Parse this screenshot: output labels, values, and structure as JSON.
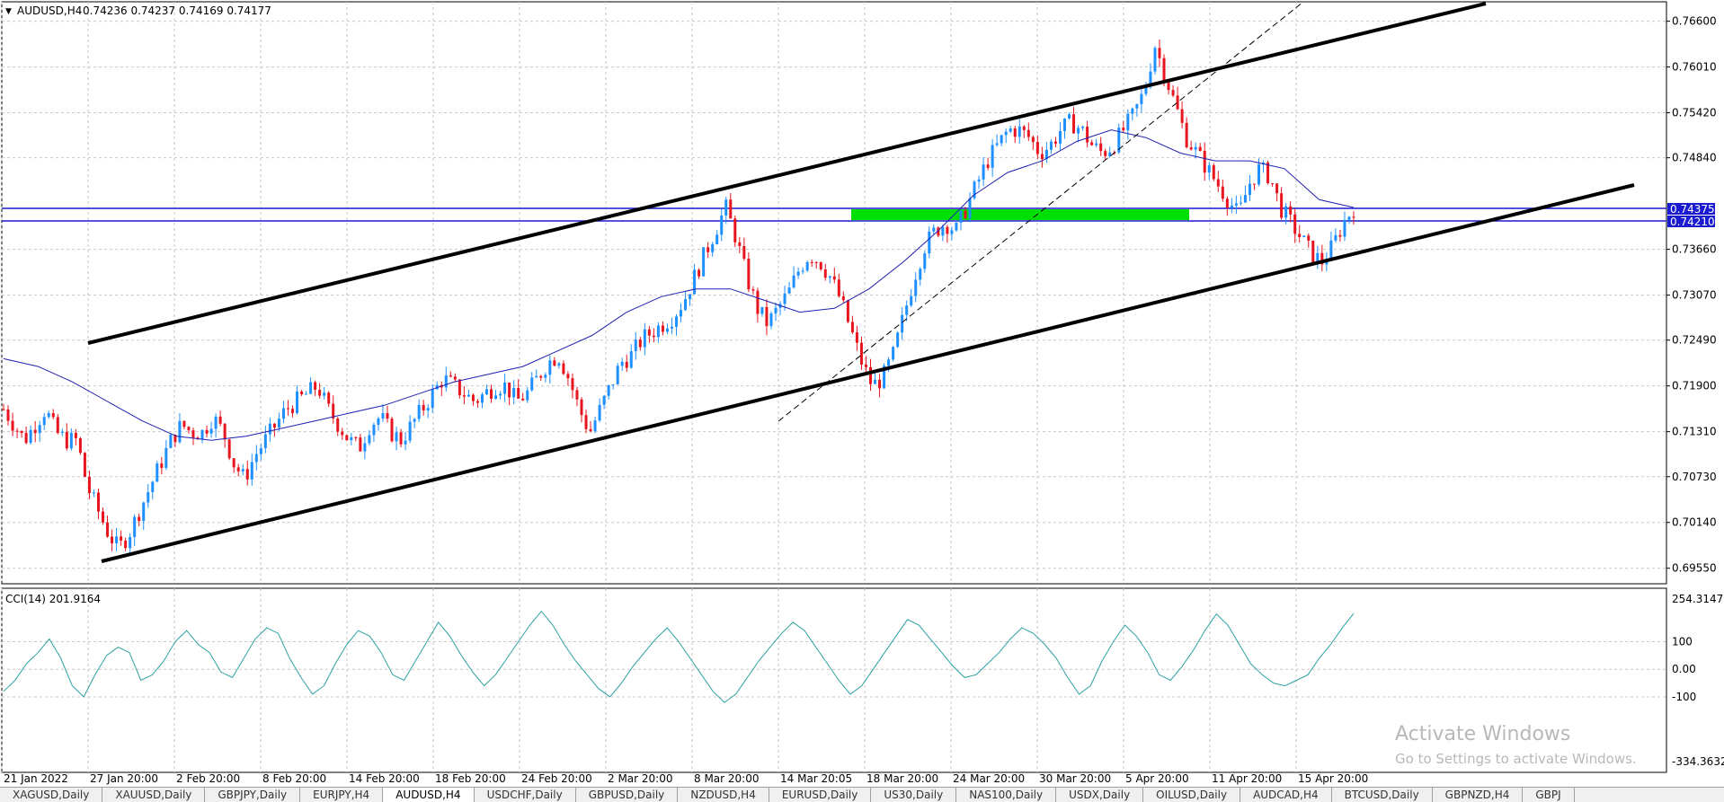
{
  "header": {
    "menu_arrow": "▼",
    "symbol": "AUDUSD,H4",
    "ohlc": "0.74236 0.74237 0.74169 0.74177"
  },
  "indicator": {
    "label": "CCI(14) 201.9164"
  },
  "price_axis": [
    "0.76600",
    "0.76010",
    "0.75420",
    "0.74840",
    "0.73660",
    "0.73070",
    "0.72490",
    "0.71900",
    "0.71310",
    "0.70730",
    "0.70140",
    "0.69550"
  ],
  "level_labels": [
    "0.74375",
    "0.74210"
  ],
  "cci_axis": [
    "254.3147",
    "100",
    "0.00",
    "-100",
    "-334.3632"
  ],
  "time_axis": [
    "21 Jan 2022",
    "27 Jan 20:00",
    "2 Feb 20:00",
    "8 Feb 20:00",
    "14 Feb 20:00",
    "18 Feb 20:00",
    "24 Feb 20:00",
    "2 Mar 20:00",
    "8 Mar 20:00",
    "14 Mar 20:05",
    "18 Mar 20:00",
    "24 Mar 20:00",
    "30 Mar 20:00",
    "5 Apr 20:00",
    "11 Apr 20:00",
    "15 Apr 20:00"
  ],
  "watermark": {
    "title": "Activate Windows",
    "subtitle": "Go to Settings to activate Windows."
  },
  "tabs": [
    "XAGUSD,Daily",
    "XAUUSD,Daily",
    "GBPJPY,Daily",
    "EURJPY,H4",
    "AUDUSD,H4",
    "USDCHF,Daily",
    "GBPUSD,Daily",
    "NZDUSD,H4",
    "EURUSD,Daily",
    "US30,Daily",
    "NAS100,Daily",
    "USDX,Daily",
    "OILUSD,Daily",
    "AUDCAD,H4",
    "BTCUSD,Daily",
    "GBPNZD,H4",
    "GBPJ"
  ],
  "active_tab": "AUDUSD,H4",
  "colors": {
    "bull": "#1e90ff",
    "bear": "#e8141e",
    "ma": "#1f1fb0",
    "cci": "#2ca0a0",
    "level_line": "#1a1ad0",
    "zone": "#00e000",
    "trend": "#000000",
    "grid": "#c8c8c8"
  },
  "chart_data": {
    "type": "candlestick",
    "symbol": "AUDUSD",
    "timeframe": "H4",
    "ylim": [
      0.6935,
      0.7685
    ],
    "x": [
      "21 Jan 2022",
      "27 Jan 20:00",
      "2 Feb 20:00",
      "8 Feb 20:00",
      "14 Feb 20:00",
      "18 Feb 20:00",
      "24 Feb 20:00",
      "2 Mar 20:00",
      "8 Mar 20:00",
      "14 Mar 20:05",
      "18 Mar 20:00",
      "24 Mar 20:00",
      "30 Mar 20:00",
      "5 Apr 20:00",
      "11 Apr 20:00",
      "15 Apr 20:00"
    ],
    "close_path": [
      0.716,
      0.714,
      0.712,
      0.714,
      0.716,
      0.713,
      0.712,
      0.712,
      0.706,
      0.703,
      0.7,
      0.698,
      0.7,
      0.703,
      0.706,
      0.709,
      0.712,
      0.714,
      0.713,
      0.713,
      0.715,
      0.713,
      0.709,
      0.707,
      0.71,
      0.712,
      0.714,
      0.716,
      0.717,
      0.718,
      0.719,
      0.716,
      0.714,
      0.712,
      0.711,
      0.714,
      0.715,
      0.713,
      0.712,
      0.714,
      0.716,
      0.718,
      0.72,
      0.719,
      0.718,
      0.717,
      0.718,
      0.719,
      0.719,
      0.717,
      0.718,
      0.72,
      0.722,
      0.723,
      0.72,
      0.716,
      0.713,
      0.716,
      0.719,
      0.722,
      0.723,
      0.725,
      0.726,
      0.727,
      0.728,
      0.73,
      0.733,
      0.736,
      0.739,
      0.742,
      0.738,
      0.733,
      0.729,
      0.727,
      0.729,
      0.731,
      0.734,
      0.736,
      0.735,
      0.733,
      0.73,
      0.726,
      0.722,
      0.719,
      0.72,
      0.723,
      0.728,
      0.733,
      0.737,
      0.739,
      0.74,
      0.739,
      0.742,
      0.745,
      0.748,
      0.75,
      0.752,
      0.752,
      0.751,
      0.749,
      0.75,
      0.752,
      0.753,
      0.752,
      0.75,
      0.749,
      0.75,
      0.752,
      0.754,
      0.757,
      0.763,
      0.759,
      0.755,
      0.751,
      0.749,
      0.747,
      0.745,
      0.743,
      0.741,
      0.745,
      0.747,
      0.746,
      0.742,
      0.74,
      0.738,
      0.736,
      0.735,
      0.737,
      0.74,
      0.742
    ],
    "ma_path": [
      0.7225,
      0.7215,
      0.7195,
      0.717,
      0.7145,
      0.7125,
      0.712,
      0.7125,
      0.7135,
      0.7145,
      0.7155,
      0.7165,
      0.718,
      0.7195,
      0.7205,
      0.7215,
      0.7235,
      0.7255,
      0.7285,
      0.7305,
      0.7315,
      0.7315,
      0.73,
      0.7285,
      0.729,
      0.7315,
      0.735,
      0.739,
      0.7435,
      0.7465,
      0.748,
      0.7505,
      0.752,
      0.751,
      0.749,
      0.748,
      0.748,
      0.747,
      0.743,
      0.742
    ],
    "cci_range": [
      -334.3632,
      254.3147
    ],
    "cci_current": 201.9164,
    "cci_path": [
      -80,
      -40,
      20,
      60,
      110,
      40,
      -60,
      -100,
      -20,
      50,
      80,
      60,
      -40,
      -20,
      30,
      100,
      140,
      90,
      60,
      -10,
      -30,
      40,
      110,
      150,
      130,
      40,
      -30,
      -90,
      -60,
      20,
      90,
      140,
      120,
      60,
      -20,
      -40,
      30,
      100,
      170,
      120,
      50,
      -10,
      -60,
      -20,
      40,
      100,
      160,
      210,
      160,
      90,
      30,
      -20,
      -70,
      -100,
      -50,
      10,
      60,
      110,
      150,
      100,
      40,
      -20,
      -80,
      -120,
      -90,
      -30,
      30,
      80,
      130,
      170,
      140,
      80,
      20,
      -40,
      -90,
      -60,
      0,
      60,
      120,
      180,
      160,
      110,
      60,
      10,
      -30,
      -20,
      20,
      60,
      110,
      150,
      130,
      90,
      40,
      -30,
      -90,
      -60,
      30,
      100,
      160,
      120,
      60,
      -20,
      -40,
      10,
      70,
      140,
      200,
      160,
      90,
      20,
      -20,
      -50,
      -60,
      -40,
      -20,
      40,
      90,
      150,
      202
    ]
  }
}
